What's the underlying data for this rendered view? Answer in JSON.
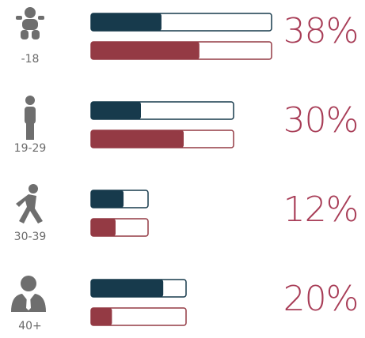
{
  "chart_data": {
    "type": "bar",
    "categories": [
      "-18",
      "19-29",
      "30-39",
      "40+"
    ],
    "values": [
      38,
      30,
      12,
      20
    ],
    "value_labels": [
      "38%",
      "30%",
      "12%",
      "20%"
    ],
    "color": "#a83d57",
    "series": [
      {
        "color": "#173a4c",
        "values": [
          39,
          35,
          57,
          76
        ]
      },
      {
        "color": "#943a44",
        "values": [
          60,
          65,
          43,
          22
        ]
      }
    ]
  }
}
